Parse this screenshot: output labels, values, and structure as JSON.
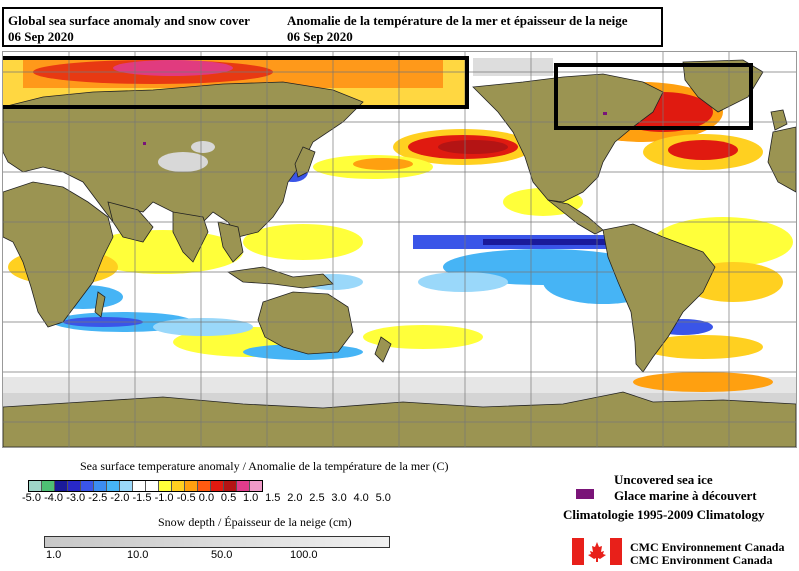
{
  "title": {
    "en": "Global sea surface anomaly and snow cover",
    "fr": "Anomalie de la température de la mer et épaisseur de la neige",
    "date_en": "06 Sep 2020",
    "date_fr": "06 Sep 2020"
  },
  "sst_legend": {
    "title": "Sea surface temperature anomaly / Anomalie de la température de la mer (C)",
    "labels": [
      "-5.0",
      "-4.0",
      "-3.0",
      "-2.5",
      "-2.0",
      "-1.5",
      "-1.0",
      "-0.5",
      "0.0",
      "0.5",
      "1.0",
      "1.5",
      "2.0",
      "2.5",
      "3.0",
      "4.0",
      "5.0"
    ],
    "colors": [
      "#9fd6c8",
      "#4ebf74",
      "#1a1a9a",
      "#2828c8",
      "#3a55e8",
      "#3c8cf0",
      "#46b4f5",
      "#9ad8fa",
      "#ffffff",
      "#ffffff",
      "#ffff3a",
      "#ffd020",
      "#ffa010",
      "#ff5a10",
      "#e01a10",
      "#b41414",
      "#e03c8c",
      "#f09ac8"
    ]
  },
  "snow_legend": {
    "title": "Snow depth / Épaisseur de la neige (cm)",
    "labels": [
      "1.0",
      "10.0",
      "50.0",
      "100.0"
    ]
  },
  "sea_ice": {
    "label_en": "Uncovered sea ice",
    "label_fr": "Glace marine à découvert",
    "color": "#7a1478"
  },
  "climatology": "Climatologie 1995-2009 Climatology",
  "credits": {
    "fr": "CMC Environnement Canada",
    "en": "CMC Environment Canada"
  },
  "map_colors": {
    "land": "#9b9452",
    "ocean": "#ffffff",
    "snow": "#d0d0d0",
    "grid": "#777777"
  }
}
